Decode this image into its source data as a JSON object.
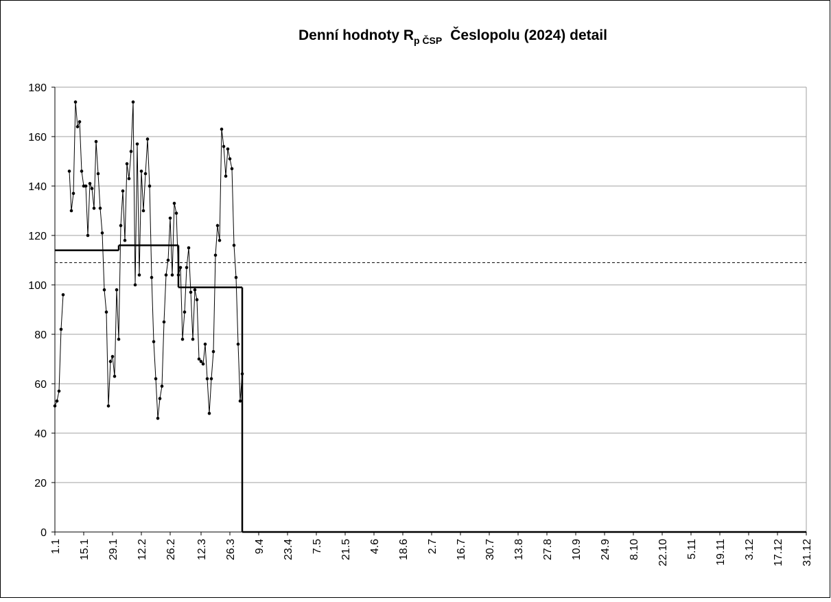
{
  "chart_data": {
    "type": "line",
    "title": {
      "main": "Denní hodnoty R",
      "subscript": "p ČSP",
      "rest": "Česlopolu (2024) detail"
    },
    "x": [
      1,
      2,
      3,
      4,
      5,
      6,
      7,
      8,
      9,
      10,
      11,
      12,
      13,
      14,
      15,
      16,
      17,
      18,
      19,
      20,
      21,
      22,
      23,
      24,
      25,
      26,
      27,
      28,
      29,
      30,
      31,
      32,
      33,
      34,
      35,
      36,
      37,
      38,
      39,
      40,
      41,
      42,
      43,
      44,
      45,
      46,
      47,
      48,
      49,
      50,
      51,
      52,
      53,
      54,
      55,
      56,
      57,
      58,
      59,
      60,
      61,
      62,
      63,
      64,
      65,
      66,
      67,
      68,
      69,
      70,
      71,
      72,
      73,
      74,
      75,
      76,
      77,
      78,
      79,
      80,
      81,
      82,
      83,
      84,
      85,
      86,
      87,
      88,
      89,
      90,
      91,
      92
    ],
    "series": [
      {
        "color": "#000000",
        "values": [
          51,
          53,
          57,
          82,
          96,
          null,
          null,
          146,
          130,
          137,
          174,
          164,
          166,
          146,
          140,
          140,
          120,
          141,
          139,
          131,
          158,
          145,
          131,
          121,
          98,
          89,
          51,
          69,
          71,
          63,
          98,
          78,
          124,
          138,
          118,
          149,
          143,
          154,
          174,
          100,
          157,
          104,
          146,
          130,
          145,
          159,
          140,
          103,
          77,
          62,
          46,
          54,
          59,
          85,
          104,
          110,
          127,
          104,
          133,
          129,
          104,
          107,
          78,
          89,
          107,
          115,
          97,
          78,
          98,
          94,
          70,
          69,
          68,
          76,
          62,
          48,
          62,
          73,
          112,
          124,
          118,
          163,
          156,
          144,
          155,
          151,
          147,
          116,
          103,
          76,
          53,
          64
        ]
      }
    ],
    "monthly": {
      "color": "#000000",
      "x": [
        1,
        32,
        61,
        92,
        122,
        153,
        183,
        214,
        245,
        275,
        306,
        336
      ],
      "values": [
        114,
        116,
        99,
        0,
        0,
        0,
        0,
        0,
        0,
        0,
        0,
        0
      ]
    },
    "mean": 109,
    "xlim": [
      1,
      366
    ],
    "xticks": [
      {
        "value": 1,
        "label": "1.1"
      },
      {
        "value": 15,
        "label": "15.1"
      },
      {
        "value": 29,
        "label": "29.1"
      },
      {
        "value": 43,
        "label": "12.2"
      },
      {
        "value": 57,
        "label": "26.2"
      },
      {
        "value": 72,
        "label": "12.3"
      },
      {
        "value": 86,
        "label": "26.3"
      },
      {
        "value": 100,
        "label": "9.4"
      },
      {
        "value": 114,
        "label": "23.4"
      },
      {
        "value": 128,
        "label": "7.5"
      },
      {
        "value": 142,
        "label": "21.5"
      },
      {
        "value": 156,
        "label": "4.6"
      },
      {
        "value": 170,
        "label": "18.6"
      },
      {
        "value": 184,
        "label": "2.7"
      },
      {
        "value": 198,
        "label": "16.7"
      },
      {
        "value": 212,
        "label": "30.7"
      },
      {
        "value": 226,
        "label": "13.8"
      },
      {
        "value": 240,
        "label": "27.8"
      },
      {
        "value": 254,
        "label": "10.9"
      },
      {
        "value": 268,
        "label": "24.9"
      },
      {
        "value": 282,
        "label": "8.10"
      },
      {
        "value": 296,
        "label": "22.10"
      },
      {
        "value": 310,
        "label": "5.11"
      },
      {
        "value": 324,
        "label": "19.11"
      },
      {
        "value": 338,
        "label": "3.12"
      },
      {
        "value": 352,
        "label": "17.12"
      },
      {
        "value": 366,
        "label": "31.12"
      }
    ],
    "ylim": [
      0,
      180
    ],
    "yticks": [
      0,
      20,
      40,
      60,
      80,
      100,
      120,
      140,
      160,
      180
    ],
    "grid": true
  }
}
